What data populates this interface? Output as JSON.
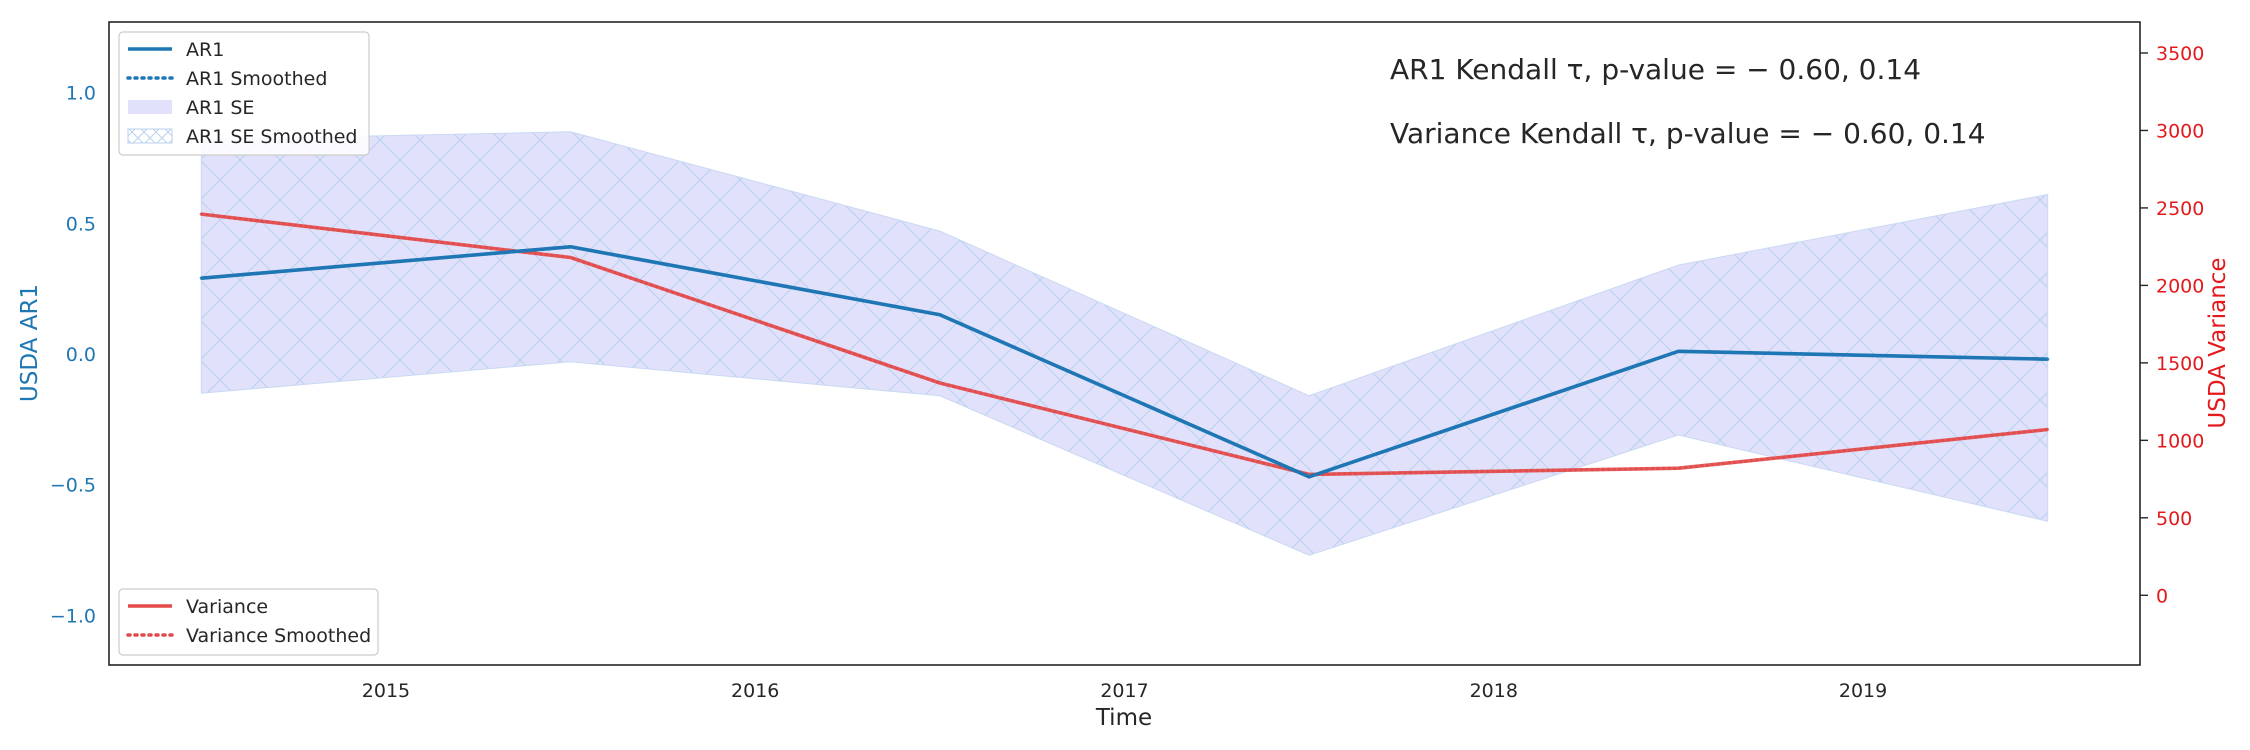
{
  "chart_data": {
    "type": "line",
    "xlabel": "Time",
    "ylabel_left": "USDA AR1",
    "ylabel_right": "USDA Variance",
    "x_range": [
      2014.25,
      2019.75
    ],
    "x_ticks": [
      "2015",
      "2016",
      "2017",
      "2018",
      "2019"
    ],
    "x_tick_values": [
      2015,
      2016,
      2017,
      2018,
      2019
    ],
    "left_range": [
      -1.19,
      1.27
    ],
    "left_ticks": [
      "−1.0",
      "−0.5",
      "0.0",
      "0.5",
      "1.0"
    ],
    "left_tick_values": [
      -1.0,
      -0.5,
      0.0,
      0.5,
      1.0
    ],
    "right_range": [
      -450,
      3700
    ],
    "right_ticks": [
      "0",
      "500",
      "1000",
      "1500",
      "2000",
      "2500",
      "3000",
      "3500"
    ],
    "right_tick_values": [
      0,
      500,
      1000,
      1500,
      2000,
      2500,
      3000,
      3500
    ],
    "x": [
      2014.5,
      2015.5,
      2016.5,
      2017.5,
      2018.5,
      2019.5
    ],
    "series": [
      {
        "name": "AR1",
        "axis": "left",
        "style": "solid",
        "color": "#1f77b4",
        "values": [
          0.29,
          0.41,
          0.15,
          -0.47,
          0.01,
          -0.02
        ]
      },
      {
        "name": "AR1 Smoothed",
        "axis": "left",
        "style": "dotted",
        "color": "#1f77b4",
        "values": [
          0.29,
          0.41,
          0.15,
          -0.47,
          0.01,
          -0.02
        ]
      },
      {
        "name": "Variance",
        "axis": "right",
        "style": "solid",
        "color": "#e24a4a",
        "values": [
          2460,
          2180,
          1370,
          780,
          820,
          1070
        ]
      },
      {
        "name": "Variance Smoothed",
        "axis": "right",
        "style": "dotted",
        "color": "#e24a4a",
        "values": [
          2460,
          2180,
          1370,
          780,
          820,
          1070
        ]
      }
    ],
    "bands": [
      {
        "name": "AR1 SE",
        "color": "#e1e1fb",
        "upper": [
          0.82,
          0.85,
          0.47,
          -0.16,
          0.34,
          0.61
        ],
        "lower": [
          -0.15,
          -0.03,
          -0.16,
          -0.77,
          -0.31,
          -0.64
        ]
      },
      {
        "name": "AR1 SE Smoothed",
        "color": "#b8d2ee",
        "upper": [
          0.82,
          0.85,
          0.47,
          -0.16,
          0.34,
          0.61
        ],
        "lower": [
          -0.15,
          -0.03,
          -0.16,
          -0.77,
          -0.31,
          -0.64
        ]
      }
    ],
    "annotations": [
      {
        "text": "AR1 Kendall τ,  p-value = − 0.60, 0.14"
      },
      {
        "text": "Variance Kendall τ,  p-value = − 0.60, 0.14"
      }
    ],
    "legend_top_left": [
      "AR1",
      "AR1 Smoothed",
      "AR1 SE",
      "AR1 SE Smoothed"
    ],
    "legend_bottom_left": [
      "Variance",
      "Variance Smoothed"
    ],
    "colors": {
      "left_axis": "#1f77b4",
      "right_axis": "#e31a1c",
      "frame": "#262626"
    }
  }
}
